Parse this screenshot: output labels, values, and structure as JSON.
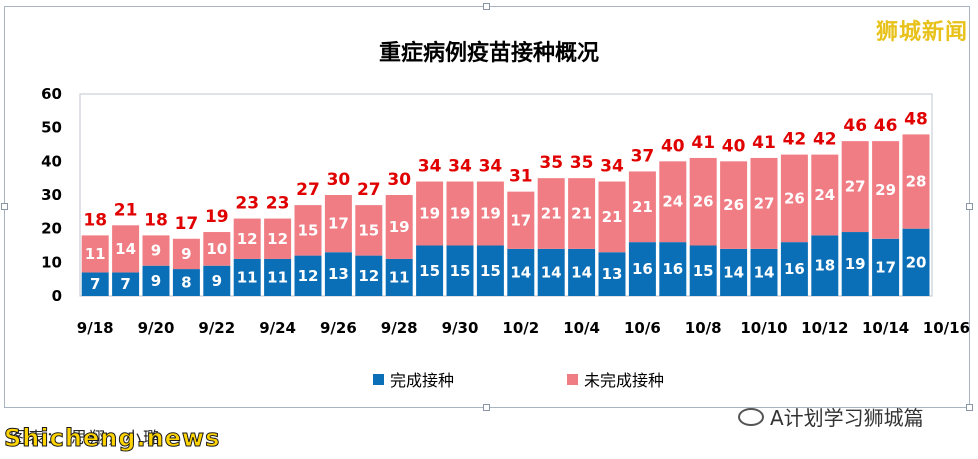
{
  "watermark": "狮城新闻",
  "wechat_text": "A计划学习狮城篇",
  "caption": "图表：   思翔，小璐",
  "site": "Shicheng.news",
  "colors": {
    "completed": "#0b6fb8",
    "not_completed": "#f07d84",
    "total_label": "#e00000"
  },
  "chart_data": {
    "type": "bar",
    "stacked": true,
    "title": "重症病例疫苗接种概况",
    "categories": [
      "9/18",
      "9/19",
      "9/20",
      "9/21",
      "9/22",
      "9/23",
      "9/24",
      "9/25",
      "9/26",
      "9/27",
      "9/28",
      "9/29",
      "9/30",
      "10/1",
      "10/2",
      "10/3",
      "10/4",
      "10/5",
      "10/6",
      "10/7",
      "10/8",
      "10/9",
      "10/10",
      "10/11",
      "10/12",
      "10/13",
      "10/14",
      "10/15"
    ],
    "x_tick_labels": [
      "9/18",
      "9/20",
      "9/22",
      "9/24",
      "9/26",
      "9/28",
      "9/30",
      "10/2",
      "10/4",
      "10/6",
      "10/8",
      "10/10",
      "10/12",
      "10/14",
      "10/16"
    ],
    "series": [
      {
        "name": "完成接种",
        "values": [
          7,
          7,
          9,
          8,
          9,
          11,
          11,
          12,
          13,
          12,
          11,
          15,
          15,
          15,
          14,
          14,
          14,
          13,
          16,
          16,
          15,
          14,
          14,
          16,
          18,
          19,
          17,
          20
        ]
      },
      {
        "name": "未完成接种",
        "values": [
          11,
          14,
          9,
          9,
          10,
          12,
          12,
          15,
          17,
          15,
          19,
          19,
          19,
          19,
          17,
          21,
          21,
          21,
          21,
          24,
          26,
          26,
          27,
          26,
          24,
          27,
          29,
          28
        ]
      }
    ],
    "totals": [
      18,
      21,
      18,
      17,
      19,
      23,
      23,
      27,
      30,
      27,
      30,
      34,
      34,
      34,
      31,
      35,
      35,
      34,
      37,
      40,
      41,
      40,
      41,
      42,
      42,
      46,
      46,
      48
    ],
    "ylim": [
      0,
      60
    ],
    "yticks": [
      0,
      10,
      20,
      30,
      40,
      50,
      60
    ],
    "grid": false,
    "legend": "bottom"
  }
}
